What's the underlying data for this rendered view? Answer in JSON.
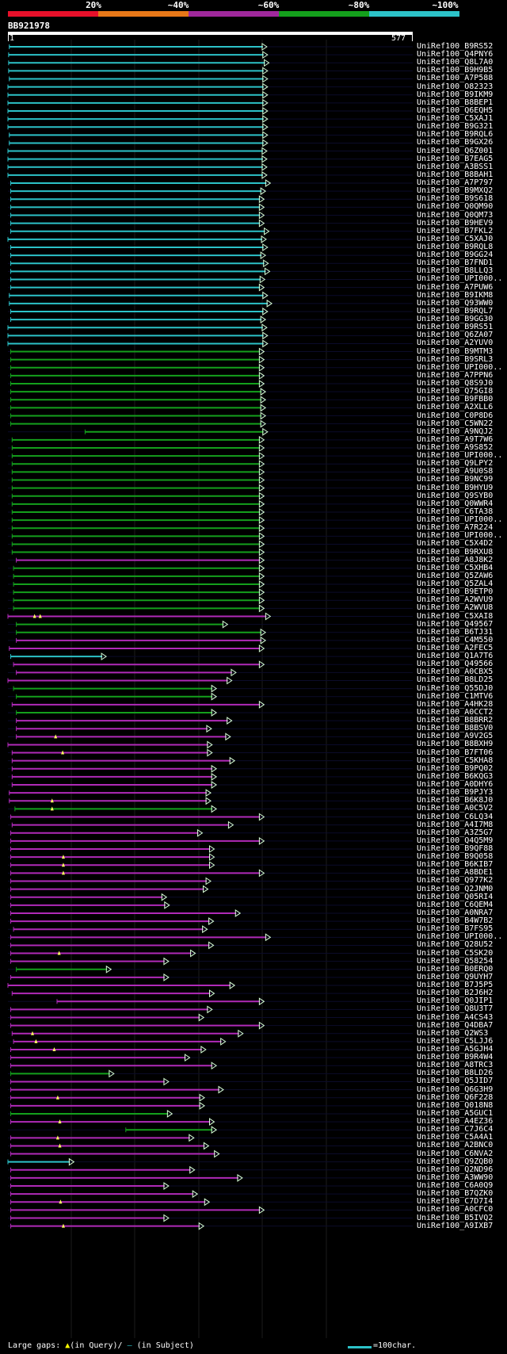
{
  "legend": {
    "labels": [
      "20%",
      "~40%",
      "~60%",
      "~80%",
      "~100%"
    ],
    "colors": [
      "#e8102a",
      "#e87818",
      "#a0289c",
      "#14a01c",
      "#2cc2c8"
    ]
  },
  "query": {
    "name": "BB921978",
    "start": "1",
    "end": "577"
  },
  "colors": {
    "cyan": "#2cc2c8",
    "green": "#14a01c",
    "magenta": "#b02ab8",
    "gap": "#ffff60"
  },
  "footer": {
    "gaps_label": "Large gaps:",
    "in_query": "(in Query)/",
    "in_subject": "(in Subject)",
    "scale_label": "=100char."
  },
  "hits": [
    {
      "id": "UniRef100_B9RS52",
      "c": "cyan",
      "s": 2,
      "e": 368
    },
    {
      "id": "UniRef100_Q4PNY6",
      "c": "cyan",
      "s": 1,
      "e": 369
    },
    {
      "id": "UniRef100_Q8L7A0",
      "c": "cyan",
      "s": 1,
      "e": 371
    },
    {
      "id": "UniRef100_B9H9B5",
      "c": "cyan",
      "s": 1,
      "e": 369
    },
    {
      "id": "UniRef100_A7P588",
      "c": "cyan",
      "s": 2,
      "e": 369
    },
    {
      "id": "UniRef100_O82323",
      "c": "cyan",
      "s": 0,
      "e": 369
    },
    {
      "id": "UniRef100_B9IKM9",
      "c": "cyan",
      "s": 0,
      "e": 369
    },
    {
      "id": "UniRef100_B8BEP1",
      "c": "cyan",
      "s": 0,
      "e": 369
    },
    {
      "id": "UniRef100_Q6EQH5",
      "c": "cyan",
      "s": 0,
      "e": 369
    },
    {
      "id": "UniRef100_C5XAJ1",
      "c": "cyan",
      "s": 0,
      "e": 369
    },
    {
      "id": "UniRef100_B9G321",
      "c": "cyan",
      "s": 0,
      "e": 369
    },
    {
      "id": "UniRef100_B9RQL6",
      "c": "cyan",
      "s": 2,
      "e": 369
    },
    {
      "id": "UniRef100_B9GX26",
      "c": "cyan",
      "s": 2,
      "e": 369
    },
    {
      "id": "UniRef100_Q6Z001",
      "c": "cyan",
      "s": 0,
      "e": 368
    },
    {
      "id": "UniRef100_B7EAG5",
      "c": "cyan",
      "s": 0,
      "e": 368
    },
    {
      "id": "UniRef100_A3BSS1",
      "c": "cyan",
      "s": 0,
      "e": 368
    },
    {
      "id": "UniRef100_B8BAH1",
      "c": "cyan",
      "s": 0,
      "e": 368
    },
    {
      "id": "UniRef100_A7P797",
      "c": "cyan",
      "s": 4,
      "e": 373
    },
    {
      "id": "UniRef100_B9MXQ2",
      "c": "cyan",
      "s": 4,
      "e": 366
    },
    {
      "id": "UniRef100_B9S618",
      "c": "cyan",
      "s": 4,
      "e": 364
    },
    {
      "id": "UniRef100_Q0QM90",
      "c": "cyan",
      "s": 4,
      "e": 364
    },
    {
      "id": "UniRef100_Q0QM73",
      "c": "cyan",
      "s": 4,
      "e": 364
    },
    {
      "id": "UniRef100_B9HEV9",
      "c": "cyan",
      "s": 4,
      "e": 364
    },
    {
      "id": "UniRef100_B7FKL2",
      "c": "cyan",
      "s": 4,
      "e": 371
    },
    {
      "id": "UniRef100_C5XAJ0",
      "c": "cyan",
      "s": 0,
      "e": 367
    },
    {
      "id": "UniRef100_B9RQL8",
      "c": "cyan",
      "s": 4,
      "e": 369
    },
    {
      "id": "UniRef100_B9GG24",
      "c": "cyan",
      "s": 4,
      "e": 366
    },
    {
      "id": "UniRef100_B7FND1",
      "c": "cyan",
      "s": 4,
      "e": 370
    },
    {
      "id": "UniRef100_B8LLQ3",
      "c": "cyan",
      "s": 4,
      "e": 372
    },
    {
      "id": "UniRef100_UPI000..",
      "c": "cyan",
      "s": 4,
      "e": 365
    },
    {
      "id": "UniRef100_A7PUW6",
      "c": "cyan",
      "s": 4,
      "e": 364
    },
    {
      "id": "UniRef100_B9IKM8",
      "c": "cyan",
      "s": 2,
      "e": 369
    },
    {
      "id": "UniRef100_Q93WW0",
      "c": "cyan",
      "s": 2,
      "e": 375
    },
    {
      "id": "UniRef100_B9RQL7",
      "c": "cyan",
      "s": 4,
      "e": 369
    },
    {
      "id": "UniRef100_B9GG30",
      "c": "cyan",
      "s": 4,
      "e": 366
    },
    {
      "id": "UniRef100_B9RS51",
      "c": "cyan",
      "s": 0,
      "e": 368
    },
    {
      "id": "UniRef100_Q6ZA07",
      "c": "cyan",
      "s": 0,
      "e": 369
    },
    {
      "id": "UniRef100_A2YUV0",
      "c": "cyan",
      "s": 0,
      "e": 369
    },
    {
      "id": "UniRef100_B9MTM3",
      "c": "green",
      "s": 4,
      "e": 364
    },
    {
      "id": "UniRef100_B9SRL3",
      "c": "green",
      "s": 4,
      "e": 364
    },
    {
      "id": "UniRef100_UPI000..",
      "c": "green",
      "s": 4,
      "e": 364
    },
    {
      "id": "UniRef100_A7PPN6",
      "c": "green",
      "s": 4,
      "e": 364
    },
    {
      "id": "UniRef100_Q8S9J0",
      "c": "green",
      "s": 4,
      "e": 364
    },
    {
      "id": "UniRef100_Q75GI8",
      "c": "green",
      "s": 4,
      "e": 366
    },
    {
      "id": "UniRef100_B9FBB0",
      "c": "green",
      "s": 4,
      "e": 366
    },
    {
      "id": "UniRef100_A2XLL6",
      "c": "green",
      "s": 4,
      "e": 366
    },
    {
      "id": "UniRef100_C0P8D6",
      "c": "green",
      "s": 4,
      "e": 366
    },
    {
      "id": "UniRef100_C5WN22",
      "c": "green",
      "s": 4,
      "e": 366
    },
    {
      "id": "UniRef100_A9NQJ2",
      "c": "green",
      "s": 110,
      "e": 369
    },
    {
      "id": "UniRef100_A9T7W6",
      "c": "green",
      "s": 6,
      "e": 364
    },
    {
      "id": "UniRef100_A9S852",
      "c": "green",
      "s": 6,
      "e": 364
    },
    {
      "id": "UniRef100_UPI000..",
      "c": "green",
      "s": 6,
      "e": 364
    },
    {
      "id": "UniRef100_Q9LPY2",
      "c": "green",
      "s": 6,
      "e": 364
    },
    {
      "id": "UniRef100_A9U0S8",
      "c": "green",
      "s": 6,
      "e": 364
    },
    {
      "id": "UniRef100_B9NC99",
      "c": "green",
      "s": 6,
      "e": 364
    },
    {
      "id": "UniRef100_B9HYU9",
      "c": "green",
      "s": 6,
      "e": 364
    },
    {
      "id": "UniRef100_Q9SYB0",
      "c": "green",
      "s": 6,
      "e": 364
    },
    {
      "id": "UniRef100_Q0WWR4",
      "c": "green",
      "s": 6,
      "e": 364
    },
    {
      "id": "UniRef100_C6TA38",
      "c": "green",
      "s": 6,
      "e": 364
    },
    {
      "id": "UniRef100_UPI000..",
      "c": "green",
      "s": 6,
      "e": 364
    },
    {
      "id": "UniRef100_A7R224",
      "c": "green",
      "s": 6,
      "e": 364
    },
    {
      "id": "UniRef100_UPI000..",
      "c": "green",
      "s": 6,
      "e": 364
    },
    {
      "id": "UniRef100_C5X4D2",
      "c": "green",
      "s": 6,
      "e": 364
    },
    {
      "id": "UniRef100_B9RXU8",
      "c": "green",
      "s": 6,
      "e": 364
    },
    {
      "id": "UniRef100_A8J8K2",
      "c": "magenta",
      "s": 12,
      "e": 364
    },
    {
      "id": "UniRef100_C5XHB4",
      "c": "green",
      "s": 8,
      "e": 364
    },
    {
      "id": "UniRef100_Q5ZAW6",
      "c": "green",
      "s": 8,
      "e": 364
    },
    {
      "id": "UniRef100_Q5ZAL4",
      "c": "green",
      "s": 8,
      "e": 364
    },
    {
      "id": "UniRef100_B9ETP0",
      "c": "green",
      "s": 8,
      "e": 364
    },
    {
      "id": "UniRef100_A2WVU9",
      "c": "green",
      "s": 8,
      "e": 364
    },
    {
      "id": "UniRef100_A2WVU8",
      "c": "green",
      "s": 8,
      "e": 364
    },
    {
      "id": "UniRef100_C5XAI8",
      "c": "magenta",
      "s": 0,
      "e": 373,
      "gaps": [
        38,
        46
      ]
    },
    {
      "id": "UniRef100_Q49567",
      "c": "green",
      "s": 12,
      "e": 312
    },
    {
      "id": "UniRef100_B6TJ31",
      "c": "green",
      "s": 12,
      "e": 366
    },
    {
      "id": "UniRef100_C4M550",
      "c": "magenta",
      "s": 12,
      "e": 366
    },
    {
      "id": "UniRef100_A2FEC5",
      "c": "magenta",
      "s": 2,
      "e": 364
    },
    {
      "id": "UniRef100_Q1A7T6",
      "c": "cyan",
      "s": 4,
      "e": 139
    },
    {
      "id": "UniRef100_Q49566",
      "c": "magenta",
      "s": 8,
      "e": 364
    },
    {
      "id": "UniRef100_A0CBX5",
      "c": "magenta",
      "s": 12,
      "e": 324
    },
    {
      "id": "UniRef100_B8LD25",
      "c": "magenta",
      "s": 0,
      "e": 318
    },
    {
      "id": "UniRef100_Q55DJ0",
      "c": "green",
      "s": 8,
      "e": 296
    },
    {
      "id": "UniRef100_C1MTV6",
      "c": "green",
      "s": 12,
      "e": 296
    },
    {
      "id": "UniRef100_A4HK28",
      "c": "magenta",
      "s": 6,
      "e": 364
    },
    {
      "id": "UniRef100_A0CCT2",
      "c": "green",
      "s": 12,
      "e": 296
    },
    {
      "id": "UniRef100_B8BRR2",
      "c": "magenta",
      "s": 12,
      "e": 318
    },
    {
      "id": "UniRef100_B8BSV0",
      "c": "magenta",
      "s": 12,
      "e": 289
    },
    {
      "id": "UniRef100_A9V2G5",
      "c": "magenta",
      "s": 12,
      "e": 316,
      "gaps": [
        68
      ]
    },
    {
      "id": "UniRef100_B8BXH9",
      "c": "magenta",
      "s": 0,
      "e": 290
    },
    {
      "id": "UniRef100_B7FT06",
      "c": "magenta",
      "s": 6,
      "e": 290,
      "gaps": [
        78
      ]
    },
    {
      "id": "UniRef100_C5KHA8",
      "c": "magenta",
      "s": 6,
      "e": 322
    },
    {
      "id": "UniRef100_B9PQ02",
      "c": "magenta",
      "s": 6,
      "e": 296
    },
    {
      "id": "UniRef100_B6KQG3",
      "c": "magenta",
      "s": 6,
      "e": 296
    },
    {
      "id": "UniRef100_A0DHY6",
      "c": "magenta",
      "s": 6,
      "e": 296
    },
    {
      "id": "UniRef100_B9PJY3",
      "c": "magenta",
      "s": 2,
      "e": 288
    },
    {
      "id": "UniRef100_B6K8J0",
      "c": "magenta",
      "s": 2,
      "e": 288,
      "gaps": [
        63
      ]
    },
    {
      "id": "UniRef100_A0C5V2",
      "c": "green",
      "s": 10,
      "e": 296,
      "gaps": [
        63
      ]
    },
    {
      "id": "UniRef100_C6LQ34",
      "c": "magenta",
      "s": 4,
      "e": 364
    },
    {
      "id": "UniRef100_A4I7M8",
      "c": "magenta",
      "s": 6,
      "e": 320
    },
    {
      "id": "UniRef100_A3Z5G7",
      "c": "magenta",
      "s": 4,
      "e": 276
    },
    {
      "id": "UniRef100_Q4Q5M9",
      "c": "magenta",
      "s": 4,
      "e": 364
    },
    {
      "id": "UniRef100_B9QF88",
      "c": "magenta",
      "s": 4,
      "e": 293
    },
    {
      "id": "UniRef100_B9Q058",
      "c": "magenta",
      "s": 4,
      "e": 293,
      "gaps": [
        79
      ]
    },
    {
      "id": "UniRef100_B6KIB7",
      "c": "magenta",
      "s": 4,
      "e": 293,
      "gaps": [
        79
      ]
    },
    {
      "id": "UniRef100_A8BDE1",
      "c": "magenta",
      "s": 4,
      "e": 364,
      "gaps": [
        79
      ]
    },
    {
      "id": "UniRef100_Q977K2",
      "c": "magenta",
      "s": 4,
      "e": 288
    },
    {
      "id": "UniRef100_Q2JNM0",
      "c": "magenta",
      "s": 4,
      "e": 284
    },
    {
      "id": "UniRef100_Q05RI4",
      "c": "magenta",
      "s": 4,
      "e": 225
    },
    {
      "id": "UniRef100_C6QEM4",
      "c": "magenta",
      "s": 4,
      "e": 229
    },
    {
      "id": "UniRef100_A0NRA7",
      "c": "magenta",
      "s": 4,
      "e": 330
    },
    {
      "id": "UniRef100_B4W7B2",
      "c": "magenta",
      "s": 4,
      "e": 292
    },
    {
      "id": "UniRef100_B7FS95",
      "c": "magenta",
      "s": 8,
      "e": 283
    },
    {
      "id": "UniRef100_UPI000..",
      "c": "magenta",
      "s": 4,
      "e": 373
    },
    {
      "id": "UniRef100_Q28U52",
      "c": "magenta",
      "s": 4,
      "e": 292
    },
    {
      "id": "UniRef100_C5SK20",
      "c": "magenta",
      "s": 4,
      "e": 266,
      "gaps": [
        73
      ]
    },
    {
      "id": "UniRef100_Q58254",
      "c": "magenta",
      "s": 4,
      "e": 228
    },
    {
      "id": "UniRef100_B0ERQ0",
      "c": "green",
      "s": 12,
      "e": 146
    },
    {
      "id": "UniRef100_Q9UYH7",
      "c": "magenta",
      "s": 4,
      "e": 228
    },
    {
      "id": "UniRef100_B7J5P5",
      "c": "magenta",
      "s": 0,
      "e": 322
    },
    {
      "id": "UniRef100_B2J6H2",
      "c": "magenta",
      "s": 6,
      "e": 293
    },
    {
      "id": "UniRef100_Q0JIP1",
      "c": "magenta",
      "s": 70,
      "e": 364
    },
    {
      "id": "UniRef100_Q8U3T7",
      "c": "magenta",
      "s": 4,
      "e": 290
    },
    {
      "id": "UniRef100_A4CS43",
      "c": "magenta",
      "s": 4,
      "e": 278
    },
    {
      "id": "UniRef100_Q4DBA7",
      "c": "magenta",
      "s": 4,
      "e": 364
    },
    {
      "id": "UniRef100_Q2WS3",
      "c": "magenta",
      "s": 6,
      "e": 334,
      "gaps": [
        35
      ]
    },
    {
      "id": "UniRef100_C5LJJ6",
      "c": "magenta",
      "s": 8,
      "e": 309,
      "gaps": [
        40
      ]
    },
    {
      "id": "UniRef100_A5GJH4",
      "c": "magenta",
      "s": 4,
      "e": 281,
      "gaps": [
        66
      ]
    },
    {
      "id": "UniRef100_B9R4W4",
      "c": "magenta",
      "s": 4,
      "e": 258
    },
    {
      "id": "UniRef100_A8TRC3",
      "c": "magenta",
      "s": 4,
      "e": 296
    },
    {
      "id": "UniRef100_B8LD26",
      "c": "green",
      "s": 4,
      "e": 150
    },
    {
      "id": "UniRef100_Q5JID7",
      "c": "magenta",
      "s": 4,
      "e": 228
    },
    {
      "id": "UniRef100_Q6G3H9",
      "c": "magenta",
      "s": 4,
      "e": 306
    },
    {
      "id": "UniRef100_Q6F228",
      "c": "magenta",
      "s": 4,
      "e": 279,
      "gaps": [
        71
      ]
    },
    {
      "id": "UniRef100_Q018N8",
      "c": "magenta",
      "s": 4,
      "e": 279
    },
    {
      "id": "UniRef100_A5GUC1",
      "c": "green",
      "s": 4,
      "e": 233
    },
    {
      "id": "UniRef100_A4EZ36",
      "c": "magenta",
      "s": 4,
      "e": 293,
      "gaps": [
        74
      ]
    },
    {
      "id": "UniRef100_C7J6C4",
      "c": "green",
      "s": 168,
      "e": 296
    },
    {
      "id": "UniRef100_C5A4A1",
      "c": "magenta",
      "s": 4,
      "e": 264,
      "gaps": [
        71
      ]
    },
    {
      "id": "UniRef100_A2BNC0",
      "c": "magenta",
      "s": 4,
      "e": 285,
      "gaps": [
        74
      ]
    },
    {
      "id": "UniRef100_C6NVA2",
      "c": "magenta",
      "s": 4,
      "e": 300
    },
    {
      "id": "UniRef100_Q9ZQB0",
      "c": "cyan",
      "s": 0,
      "e": 93
    },
    {
      "id": "UniRef100_Q2ND96",
      "c": "magenta",
      "s": 4,
      "e": 265
    },
    {
      "id": "UniRef100_A3WW90",
      "c": "magenta",
      "s": 4,
      "e": 333
    },
    {
      "id": "UniRef100_C6A0Q9",
      "c": "magenta",
      "s": 4,
      "e": 228
    },
    {
      "id": "UniRef100_B7QZK0",
      "c": "magenta",
      "s": 4,
      "e": 269
    },
    {
      "id": "UniRef100_C7D7I4",
      "c": "magenta",
      "s": 4,
      "e": 286,
      "gaps": [
        75
      ]
    },
    {
      "id": "UniRef100_A0CFC0",
      "c": "magenta",
      "s": 4,
      "e": 364
    },
    {
      "id": "UniRef100_B5IVQ2",
      "c": "magenta",
      "s": 4,
      "e": 228
    },
    {
      "id": "UniRef100_A9IXB7",
      "c": "magenta",
      "s": 4,
      "e": 278,
      "gaps": [
        79
      ]
    }
  ]
}
